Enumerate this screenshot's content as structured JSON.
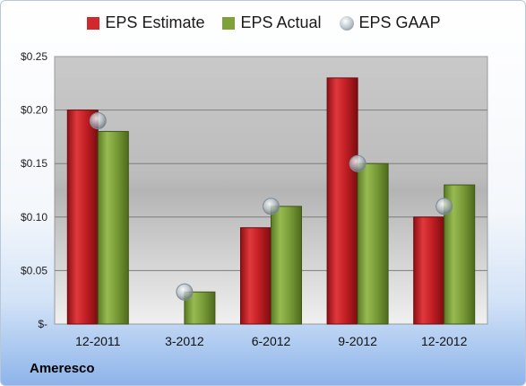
{
  "company": "Ameresco",
  "legend": [
    {
      "label": "EPS Estimate",
      "color": "#d0282c",
      "shape": "square"
    },
    {
      "label": "EPS Actual",
      "color": "#7ea13a",
      "shape": "square"
    },
    {
      "label": "EPS GAAP",
      "color": "#b9c2c9",
      "shape": "circle"
    }
  ],
  "chart_data": {
    "type": "bar",
    "categories": [
      "12-2011",
      "3-2012",
      "6-2012",
      "9-2012",
      "12-2012"
    ],
    "series": [
      {
        "name": "EPS Estimate",
        "values": [
          0.2,
          null,
          0.09,
          0.23,
          0.1
        ],
        "color": "#d0282c"
      },
      {
        "name": "EPS Actual",
        "values": [
          0.18,
          0.03,
          0.11,
          0.15,
          0.13
        ],
        "color": "#7ea13a"
      },
      {
        "name": "EPS GAAP",
        "values": [
          0.19,
          0.03,
          0.11,
          0.15,
          0.11
        ],
        "color": "#b9c2c9",
        "marker": "circle"
      }
    ],
    "ylim": [
      0,
      0.25
    ],
    "yticks": [
      0,
      0.05,
      0.1,
      0.15,
      0.2,
      0.25
    ],
    "ytick_labels": [
      "$-",
      "$0.05",
      "$0.10",
      "$0.15",
      "$0.20",
      "$0.25"
    ],
    "grid": true,
    "legend_position": "top"
  }
}
